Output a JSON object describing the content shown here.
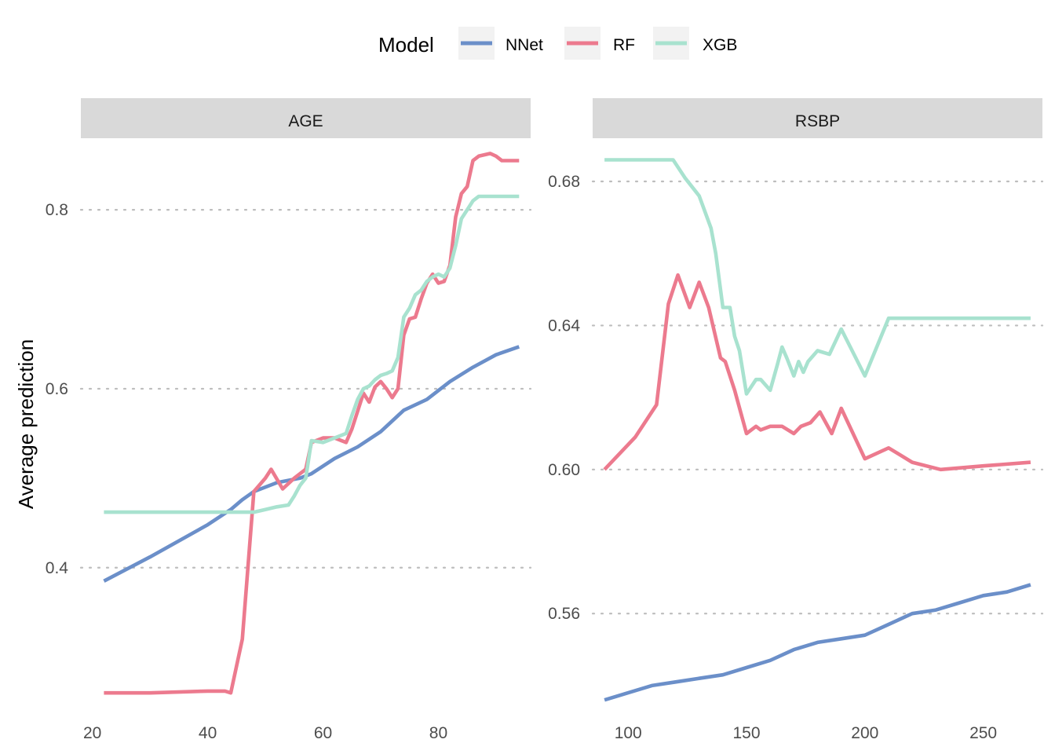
{
  "chart_data": {
    "type": "line",
    "ylabel": "Average prediction",
    "legend": {
      "title": "Model",
      "position": "top",
      "entries": [
        "NNet",
        "RF",
        "XGB"
      ]
    },
    "grid": {
      "major_y": true,
      "style": "dotted"
    },
    "colors": {
      "NNet": "#6b8fc9",
      "RF": "#ec7a8e",
      "XGB": "#a8e2cf"
    },
    "panels": [
      {
        "strip": "AGE",
        "xlim": [
          18,
          96
        ],
        "ylim": [
          0.24,
          0.88
        ],
        "xticks": [
          20,
          40,
          60,
          80
        ],
        "yticks": [
          0.4,
          0.6,
          0.8
        ],
        "ytick_labels": [
          "0.4",
          "0.6",
          "0.8"
        ],
        "series": [
          {
            "name": "NNet",
            "x": [
              22,
              30,
              40,
              44,
              46,
              48,
              52,
              56,
              58,
              62,
              66,
              70,
              74,
              78,
              82,
              86,
              90,
              94
            ],
            "y": [
              0.385,
              0.412,
              0.448,
              0.465,
              0.476,
              0.485,
              0.495,
              0.5,
              0.505,
              0.522,
              0.535,
              0.552,
              0.576,
              0.588,
              0.608,
              0.624,
              0.638,
              0.647
            ]
          },
          {
            "name": "RF",
            "x": [
              22,
              30,
              40,
              43,
              44,
              46,
              48,
              50,
              51,
              53,
              55,
              57,
              58,
              60,
              62,
              64,
              65,
              67,
              68,
              69,
              70,
              71,
              72,
              73,
              74,
              75,
              76,
              77,
              78,
              79,
              80,
              81,
              82,
              83,
              84,
              85,
              86,
              87,
              89,
              90,
              91,
              92,
              94
            ],
            "y": [
              0.26,
              0.26,
              0.262,
              0.262,
              0.26,
              0.32,
              0.485,
              0.5,
              0.51,
              0.488,
              0.5,
              0.51,
              0.54,
              0.545,
              0.545,
              0.54,
              0.555,
              0.595,
              0.585,
              0.602,
              0.608,
              0.6,
              0.59,
              0.6,
              0.66,
              0.678,
              0.68,
              0.7,
              0.718,
              0.728,
              0.718,
              0.72,
              0.738,
              0.792,
              0.818,
              0.826,
              0.855,
              0.86,
              0.863,
              0.86,
              0.855,
              0.855,
              0.855
            ]
          },
          {
            "name": "XGB",
            "x": [
              22,
              30,
              40,
              45,
              48,
              50,
              52,
              54,
              55,
              56,
              57,
              58,
              60,
              62,
              64,
              65,
              66,
              67,
              68,
              69,
              70,
              71,
              72,
              73,
              74,
              75,
              76,
              77,
              78,
              79,
              80,
              81,
              82,
              83,
              84,
              85,
              86,
              87,
              94
            ],
            "y": [
              0.462,
              0.462,
              0.462,
              0.462,
              0.462,
              0.465,
              0.468,
              0.47,
              0.48,
              0.492,
              0.5,
              0.542,
              0.54,
              0.545,
              0.55,
              0.57,
              0.588,
              0.6,
              0.603,
              0.61,
              0.615,
              0.617,
              0.62,
              0.635,
              0.68,
              0.69,
              0.705,
              0.71,
              0.72,
              0.725,
              0.728,
              0.725,
              0.735,
              0.76,
              0.79,
              0.8,
              0.81,
              0.815,
              0.815
            ]
          }
        ]
      },
      {
        "strip": "RSBP",
        "xlim": [
          85,
          275
        ],
        "ylim": [
          0.533,
          0.692
        ],
        "xticks": [
          100,
          150,
          200,
          250
        ],
        "yticks": [
          0.56,
          0.6,
          0.64,
          0.68
        ],
        "ytick_labels": [
          "0.56",
          "0.60",
          "0.64",
          "0.68"
        ],
        "series": [
          {
            "name": "NNet",
            "x": [
              90,
              100,
              110,
              120,
              130,
              140,
              150,
              160,
              170,
              180,
              190,
              200,
              210,
              220,
              230,
              240,
              250,
              260,
              270
            ],
            "y": [
              0.536,
              0.538,
              0.54,
              0.541,
              0.542,
              0.543,
              0.545,
              0.547,
              0.55,
              0.552,
              0.553,
              0.554,
              0.557,
              0.56,
              0.561,
              0.563,
              0.565,
              0.566,
              0.568
            ]
          },
          {
            "name": "RF",
            "x": [
              90,
              103,
              112,
              117,
              121,
              126,
              130,
              134,
              139,
              141,
              145,
              150,
              154,
              156,
              160,
              165,
              170,
              173,
              177,
              181,
              186,
              190,
              200,
              210,
              220,
              232,
              250,
              270
            ],
            "y": [
              0.6,
              0.609,
              0.618,
              0.646,
              0.654,
              0.645,
              0.652,
              0.645,
              0.631,
              0.63,
              0.622,
              0.61,
              0.612,
              0.611,
              0.612,
              0.612,
              0.61,
              0.612,
              0.613,
              0.616,
              0.61,
              0.617,
              0.603,
              0.606,
              0.602,
              0.6,
              0.601,
              0.602
            ]
          },
          {
            "name": "XGB",
            "x": [
              90,
              119,
              124,
              130,
              135,
              137,
              140,
              143,
              145,
              147,
              150,
              154,
              156,
              160,
              163,
              165,
              167,
              170,
              172,
              174,
              176,
              180,
              185,
              190,
              200,
              210,
              220,
              230,
              270
            ],
            "y": [
              0.686,
              0.686,
              0.681,
              0.676,
              0.667,
              0.66,
              0.645,
              0.645,
              0.637,
              0.633,
              0.621,
              0.625,
              0.625,
              0.622,
              0.629,
              0.634,
              0.631,
              0.626,
              0.63,
              0.627,
              0.63,
              0.633,
              0.632,
              0.639,
              0.626,
              0.642,
              0.642,
              0.642,
              0.642
            ]
          }
        ]
      }
    ]
  }
}
